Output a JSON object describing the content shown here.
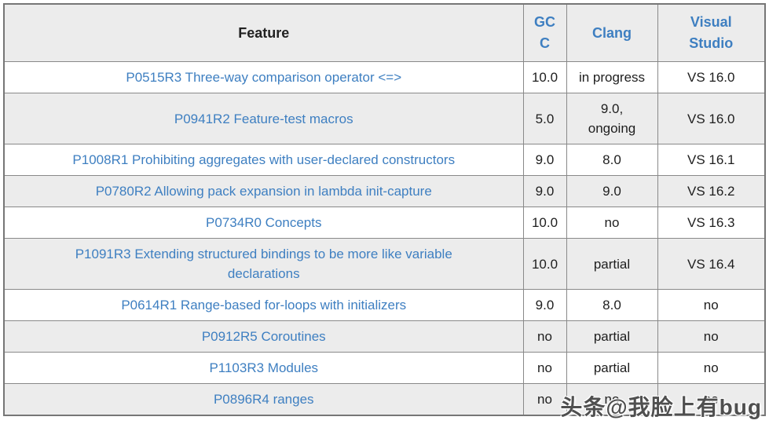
{
  "table": {
    "columns": [
      {
        "label": "Feature"
      },
      {
        "label": "GCC"
      },
      {
        "label": "Clang"
      },
      {
        "label": "Visual Studio"
      }
    ],
    "rows": [
      {
        "feature": "P0515R3 Three-way comparison operator <=>",
        "gcc": "10.0",
        "clang": "in progress",
        "vs": "VS 16.0"
      },
      {
        "feature": "P0941R2 Feature-test macros",
        "gcc": "5.0",
        "clang": "9.0,\nongoing",
        "vs": "VS 16.0"
      },
      {
        "feature": "P1008R1 Prohibiting aggregates with user-declared constructors",
        "gcc": "9.0",
        "clang": "8.0",
        "vs": "VS 16.1"
      },
      {
        "feature": "P0780R2 Allowing pack expansion in lambda init-capture",
        "gcc": "9.0",
        "clang": "9.0",
        "vs": "VS 16.2"
      },
      {
        "feature": "P0734R0 Concepts",
        "gcc": "10.0",
        "clang": "no",
        "vs": "VS 16.3"
      },
      {
        "feature": "P1091R3 Extending structured bindings to be more like variable\ndeclarations",
        "gcc": "10.0",
        "clang": "partial",
        "vs": "VS 16.4"
      },
      {
        "feature": "P0614R1 Range-based for-loops with initializers",
        "gcc": "9.0",
        "clang": "8.0",
        "vs": "no"
      },
      {
        "feature": "P0912R5 Coroutines",
        "gcc": "no",
        "clang": "partial",
        "vs": "no"
      },
      {
        "feature": "P1103R3 Modules",
        "gcc": "no",
        "clang": "partial",
        "vs": "no"
      },
      {
        "feature": "P0896R4 ranges",
        "gcc": "no",
        "clang": "no",
        "vs": "no"
      }
    ]
  },
  "watermark": {
    "text": "头条@我脸上有bug"
  },
  "colors": {
    "link_blue": "#3e7fc1",
    "header_text": "#222222",
    "cell_text": "#1e1e1e",
    "alt_row_bg": "#ececec",
    "border_gray": "#898989"
  }
}
